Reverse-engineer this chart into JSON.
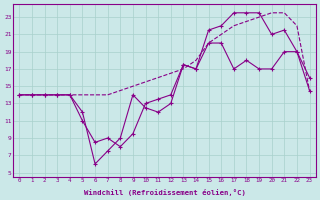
{
  "xlabel": "Windchill (Refroidissement éolien,°C)",
  "bg_color": "#cbe8e8",
  "grid_color": "#a8d0cc",
  "line_color": "#880088",
  "xlim": [
    -0.5,
    23.5
  ],
  "ylim": [
    4.5,
    24.5
  ],
  "xticks": [
    0,
    1,
    2,
    3,
    4,
    5,
    6,
    7,
    8,
    9,
    10,
    11,
    12,
    13,
    14,
    15,
    16,
    17,
    18,
    19,
    20,
    21,
    22,
    23
  ],
  "yticks": [
    5,
    7,
    9,
    11,
    13,
    15,
    17,
    19,
    21,
    23
  ],
  "line1_x": [
    0,
    1,
    2,
    3,
    4,
    5,
    6,
    7,
    8,
    9,
    10,
    11,
    12,
    13,
    14,
    15,
    16,
    17,
    18,
    19,
    20,
    21,
    22,
    23
  ],
  "line1_y": [
    14,
    14,
    14,
    14,
    14,
    11,
    8.5,
    9,
    8,
    9.5,
    13,
    13.5,
    14,
    17.5,
    17,
    20,
    20,
    17,
    18,
    17,
    17,
    19,
    19,
    16
  ],
  "line2_x": [
    0,
    1,
    2,
    3,
    4,
    5,
    6,
    7,
    8,
    9,
    10,
    11,
    12,
    13,
    14,
    15,
    16,
    17,
    18,
    19,
    20,
    21,
    22,
    23
  ],
  "line2_y": [
    14,
    14,
    14,
    14,
    14,
    14,
    14,
    14,
    14.5,
    15,
    15.5,
    16,
    16.5,
    17,
    18,
    20,
    21,
    22,
    22.5,
    23,
    23.5,
    23.5,
    22,
    14.5
  ],
  "line3_x": [
    0,
    1,
    2,
    3,
    4,
    5,
    6,
    7,
    8,
    9,
    10,
    11,
    12,
    13,
    14,
    15,
    16,
    17,
    18,
    19,
    20,
    21,
    22,
    23
  ],
  "line3_y": [
    14,
    14,
    14,
    14,
    14,
    12,
    6,
    7.5,
    9,
    14,
    12.5,
    12,
    13,
    17.5,
    17,
    21.5,
    22,
    23.5,
    23.5,
    23.5,
    21,
    21.5,
    19,
    14.5
  ]
}
